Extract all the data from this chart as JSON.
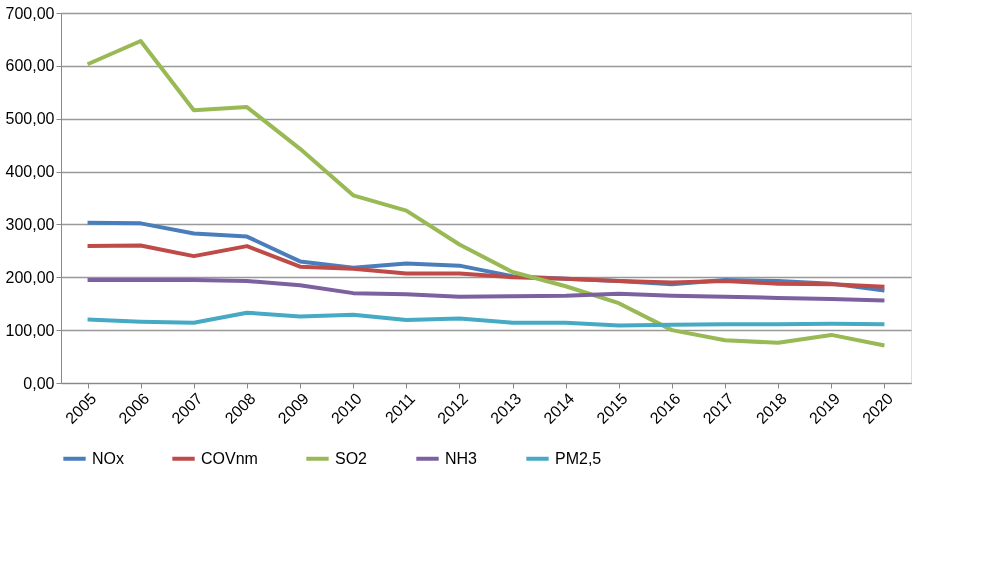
{
  "chart_data": {
    "type": "line",
    "categories": [
      "2005",
      "2006",
      "2007",
      "2008",
      "2009",
      "2010",
      "2011",
      "2012",
      "2013",
      "2014",
      "2015",
      "2016",
      "2017",
      "2018",
      "2019",
      "2020"
    ],
    "series": [
      {
        "name": "NOx",
        "color": "#4a7ebb",
        "values": [
          303,
          302,
          283,
          277,
          230,
          218,
          226,
          222,
          202,
          197,
          193,
          187,
          195,
          193,
          188,
          175
        ]
      },
      {
        "name": "COVnm",
        "color": "#be4b48",
        "values": [
          259,
          260,
          240,
          259,
          220,
          216,
          207,
          207,
          200,
          197,
          193,
          190,
          193,
          188,
          187,
          182
        ]
      },
      {
        "name": "SO2",
        "color": "#98b954",
        "values": [
          603,
          647,
          516,
          522,
          443,
          355,
          326,
          262,
          210,
          183,
          151,
          100,
          81,
          76,
          91,
          71
        ]
      },
      {
        "name": "NH3",
        "color": "#7d60a0",
        "values": [
          195,
          195,
          195,
          193,
          185,
          170,
          168,
          163,
          164,
          165,
          169,
          165,
          163,
          161,
          159,
          156
        ]
      },
      {
        "name": "PM2,5",
        "color": "#46aac5",
        "values": [
          120,
          116,
          114,
          133,
          126,
          129,
          119,
          122,
          114,
          114,
          109,
          110,
          111,
          111,
          112,
          111
        ]
      }
    ],
    "ylim": [
      0,
      700
    ],
    "yticks": [
      {
        "value": 0,
        "label": "0,00"
      },
      {
        "value": 100,
        "label": "100,00"
      },
      {
        "value": 200,
        "label": "200,00"
      },
      {
        "value": 300,
        "label": "300,00"
      },
      {
        "value": 400,
        "label": "400,00"
      },
      {
        "value": 500,
        "label": "500,00"
      },
      {
        "value": 600,
        "label": "600,00"
      },
      {
        "value": 700,
        "label": "700,00"
      }
    ],
    "grid": "y",
    "legend": "bottom",
    "marker": "none",
    "line_style": "solid"
  }
}
